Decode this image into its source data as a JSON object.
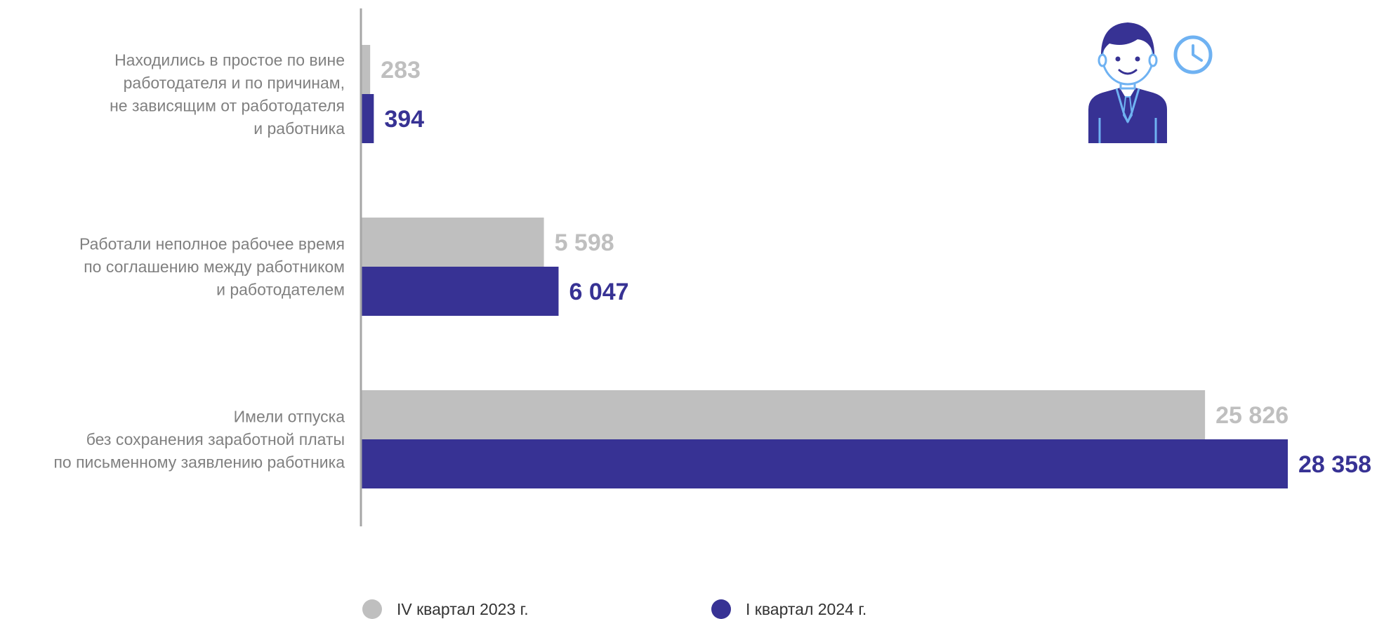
{
  "chart_data": {
    "type": "bar",
    "orientation": "horizontal",
    "title": "",
    "xlabel": "",
    "ylabel": "",
    "grid": false,
    "legend_position": "bottom",
    "xlim": [
      0,
      28358
    ],
    "categories": [
      [
        "Находились в простое по вине",
        "работодателя и по причинам,",
        "не зависящим от работодателя",
        "и работника"
      ],
      [
        "Работали неполное рабочее время",
        "по соглашению между работником",
        "и работодателем"
      ],
      [
        "Имели отпуска",
        "без сохранения заработной платы",
        "по письменному заявлению работника"
      ]
    ],
    "series": [
      {
        "name": "IV квартал 2023 г.",
        "color": "#bfbfbf",
        "values": [
          283,
          5598,
          25826
        ],
        "labels": [
          "283",
          "5 598",
          "25 826"
        ]
      },
      {
        "name": "I квартал 2024 г.",
        "color": "#373294",
        "values": [
          394,
          6047,
          28358
        ],
        "labels": [
          "394",
          "6 047",
          "28 358"
        ]
      }
    ]
  },
  "decor": {
    "icon": "office-worker-with-clock-icon",
    "axis_color": "#a6a6a6",
    "accent_light": "#6fb2f2"
  }
}
